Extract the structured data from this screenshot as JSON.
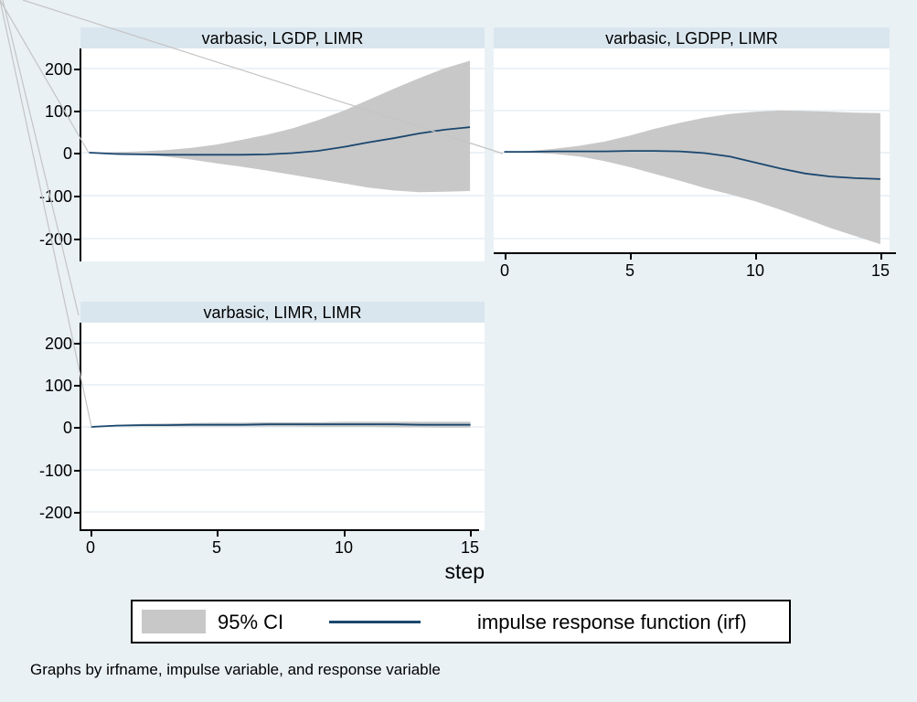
{
  "figure": {
    "xlabel": "step",
    "note": "Graphs by irfname, impulse variable, and response variable",
    "legend": {
      "ci_label": "95% CI",
      "irf_label": "impulse response function (irf)",
      "position": "bottom"
    },
    "colors": {
      "background": "#e9f1f5",
      "title_bar": "#dae6ee",
      "plot_background": "#ffffff",
      "grid": "#e7eef4",
      "ci_band": "#c8c8c8",
      "irf_line": "#1a476f",
      "axis": "#000000",
      "artifact_line": "#c4c4c4"
    }
  },
  "chart_data": [
    {
      "type": "line",
      "panel": "top-left",
      "title": "varbasic, LGDP, LIMR",
      "xlabel": "step",
      "xlim": [
        0,
        15
      ],
      "ylim": [
        -250,
        245
      ],
      "grid": "on",
      "x": [
        0,
        1,
        2,
        3,
        4,
        5,
        6,
        7,
        8,
        9,
        10,
        11,
        12,
        13,
        14,
        15
      ],
      "series": [
        {
          "name": "irf",
          "values": [
            0,
            -3,
            -4,
            -5,
            -5,
            -5,
            -5,
            -4,
            -1,
            4,
            13,
            24,
            34,
            45,
            54,
            60
          ]
        },
        {
          "name": "ci_upper",
          "values": [
            0,
            1,
            3,
            6,
            11,
            19,
            30,
            42,
            57,
            76,
            98,
            124,
            150,
            175,
            198,
            216
          ]
        },
        {
          "name": "ci_lower",
          "values": [
            0,
            -1,
            -4,
            -9,
            -16,
            -25,
            -33,
            -42,
            -52,
            -62,
            -72,
            -82,
            -89,
            -93,
            -92,
            -90
          ]
        }
      ],
      "y_tick_labels": [
        "200",
        "100",
        "0",
        "-100",
        "-200"
      ],
      "x_tick_labels": []
    },
    {
      "type": "line",
      "panel": "top-right",
      "title": "varbasic, LGDPP, LIMR",
      "xlabel": "step",
      "xlim": [
        0,
        15
      ],
      "ylim": [
        -240,
        245
      ],
      "grid": "on",
      "x": [
        0,
        1,
        2,
        3,
        4,
        5,
        6,
        7,
        8,
        9,
        10,
        11,
        12,
        13,
        14,
        15
      ],
      "series": [
        {
          "name": "irf",
          "values": [
            2,
            2,
            3,
            3,
            3,
            4,
            4,
            3,
            -1,
            -9,
            -23,
            -37,
            -49,
            -56,
            -60,
            -62
          ]
        },
        {
          "name": "ci_upper",
          "values": [
            2,
            4,
            9,
            16,
            26,
            40,
            56,
            70,
            82,
            91,
            96,
            99,
            98,
            96,
            94,
            93
          ]
        },
        {
          "name": "ci_lower",
          "values": [
            2,
            0,
            -3,
            -9,
            -20,
            -34,
            -50,
            -66,
            -83,
            -98,
            -114,
            -134,
            -155,
            -177,
            -196,
            -215
          ]
        }
      ],
      "y_tick_labels": [],
      "x_tick_labels": [
        "0",
        "5",
        "10",
        "15"
      ]
    },
    {
      "type": "line",
      "panel": "bottom-left",
      "title": "varbasic, LIMR, LIMR",
      "xlabel": "step",
      "xlim": [
        0,
        15
      ],
      "ylim": [
        -245,
        245
      ],
      "grid": "on",
      "x": [
        0,
        1,
        2,
        3,
        4,
        5,
        6,
        7,
        8,
        9,
        10,
        11,
        12,
        13,
        14,
        15
      ],
      "series": [
        {
          "name": "irf",
          "values": [
            0,
            3,
            4,
            4,
            5,
            5,
            5,
            6,
            6,
            6,
            6,
            6,
            6,
            5,
            5,
            5
          ]
        },
        {
          "name": "ci_upper",
          "values": [
            0,
            5,
            7,
            8,
            9,
            10,
            10,
            11,
            11,
            11,
            12,
            12,
            12,
            12,
            12,
            12
          ]
        },
        {
          "name": "ci_lower",
          "values": [
            0,
            1,
            1,
            1,
            1,
            1,
            1,
            1,
            1,
            0,
            0,
            0,
            -1,
            -1,
            -2,
            -2
          ]
        }
      ],
      "y_tick_labels": [
        "200",
        "100",
        "0",
        "-100",
        "-200"
      ],
      "x_tick_labels": [
        "0",
        "5",
        "10",
        "15"
      ]
    }
  ]
}
